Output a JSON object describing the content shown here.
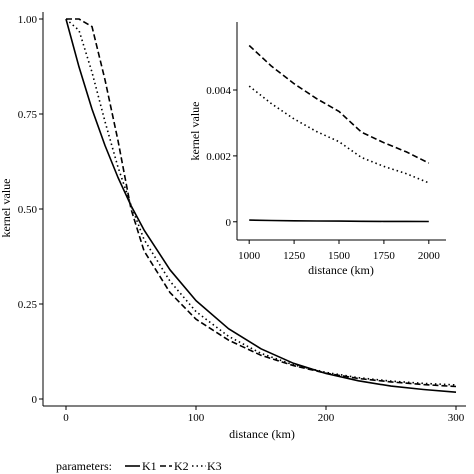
{
  "chart_data": [
    {
      "type": "line",
      "panel": "main",
      "title": "",
      "xlabel": "distance (km)",
      "ylabel": "kernel value",
      "xlim": [
        0,
        300
      ],
      "ylim": [
        0,
        1
      ],
      "x_ticks": [
        0,
        100,
        200,
        300
      ],
      "x_tick_labels": [
        "0",
        "100",
        "200",
        "300"
      ],
      "y_ticks": [
        0,
        0.25,
        0.5,
        0.75,
        1
      ],
      "y_tick_labels": [
        "0",
        "0.25",
        "0.50",
        "0.75",
        "1.00"
      ],
      "grid": false,
      "x": [
        0,
        10,
        20,
        30,
        40,
        50,
        60,
        80,
        100,
        125,
        150,
        175,
        200,
        225,
        250,
        275,
        300
      ],
      "series": [
        {
          "name": "K1",
          "dash": "solid",
          "values": [
            1.0,
            0.874,
            0.763,
            0.667,
            0.583,
            0.509,
            0.445,
            0.34,
            0.259,
            0.185,
            0.132,
            0.094,
            0.067,
            0.048,
            0.034,
            0.025,
            0.018
          ]
        },
        {
          "name": "K2",
          "dash": "dashed",
          "values": [
            1.0,
            1.0,
            0.98,
            0.84,
            0.68,
            0.5,
            0.39,
            0.28,
            0.21,
            0.155,
            0.115,
            0.088,
            0.068,
            0.054,
            0.045,
            0.038,
            0.033
          ]
        },
        {
          "name": "K3",
          "dash": "dotted",
          "values": [
            1.0,
            0.97,
            0.86,
            0.73,
            0.61,
            0.51,
            0.42,
            0.31,
            0.23,
            0.165,
            0.12,
            0.09,
            0.07,
            0.056,
            0.047,
            0.041,
            0.037
          ]
        }
      ]
    },
    {
      "type": "line",
      "panel": "inset",
      "title": "",
      "xlabel": "distance (km)",
      "ylabel": "kernel value",
      "xlim": [
        960,
        2040
      ],
      "ylim": [
        -0.00028,
        0.0057
      ],
      "x_ticks": [
        1000,
        1250,
        1500,
        1750,
        2000
      ],
      "x_tick_labels": [
        "1000",
        "1250",
        "1500",
        "1750",
        "2000"
      ],
      "y_ticks": [
        0,
        0.002,
        0.004
      ],
      "y_tick_labels": [
        "0",
        "0.002",
        "0.004"
      ],
      "grid": false,
      "x": [
        1000,
        1125,
        1250,
        1375,
        1500,
        1625,
        1750,
        1875,
        2000
      ],
      "series": [
        {
          "name": "K1",
          "dash": "solid",
          "values": [
            5e-05,
            4e-05,
            3e-05,
            2.5e-05,
            2e-05,
            1.5e-05,
            1.2e-05,
            1e-05,
            8e-06
          ]
        },
        {
          "name": "K2",
          "dash": "dashed",
          "values": [
            0.00535,
            0.00472,
            0.00419,
            0.00374,
            0.00335,
            0.00272,
            0.0024,
            0.00212,
            0.00178
          ]
        },
        {
          "name": "K3",
          "dash": "dotted",
          "values": [
            0.00412,
            0.00358,
            0.00312,
            0.00274,
            0.00243,
            0.00195,
            0.00168,
            0.00146,
            0.00118
          ]
        }
      ]
    }
  ],
  "legend": {
    "title": "parameters:",
    "placement": "bottom-left",
    "entries": [
      "K1",
      "K2",
      "K3"
    ]
  }
}
